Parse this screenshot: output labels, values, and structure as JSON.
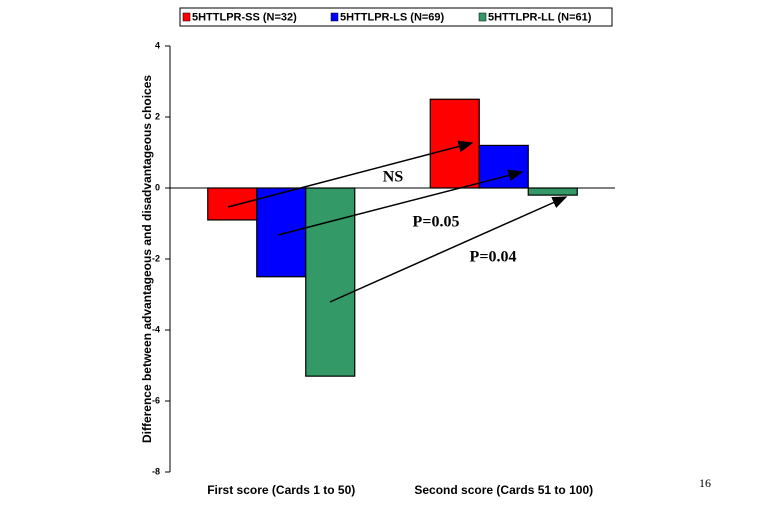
{
  "chart_data": {
    "type": "bar",
    "y_axis_label": "Difference between advantageous and disadvantageous choices",
    "categories": [
      "First score (Cards 1 to 50)",
      "Second score (Cards 51 to 100)"
    ],
    "series": [
      {
        "name": "5HTTLPR-SS (N=32)",
        "color": "#ff0000",
        "values": [
          -0.9,
          2.5
        ]
      },
      {
        "name": "5HTTLPR-LS (N=69)",
        "color": "#0000ff",
        "values": [
          -2.5,
          1.2
        ]
      },
      {
        "name": "5HTTLPR-LL (N=61)",
        "color": "#339966",
        "values": [
          -5.3,
          -0.2
        ]
      }
    ],
    "ylim": [
      -8,
      4
    ],
    "yticks": [
      -8,
      -6,
      -4,
      -2,
      0,
      2,
      4
    ],
    "annotations": [
      "NS",
      "P=0.05",
      "P=0.04"
    ],
    "legend_position": "top"
  },
  "page_number": "16"
}
